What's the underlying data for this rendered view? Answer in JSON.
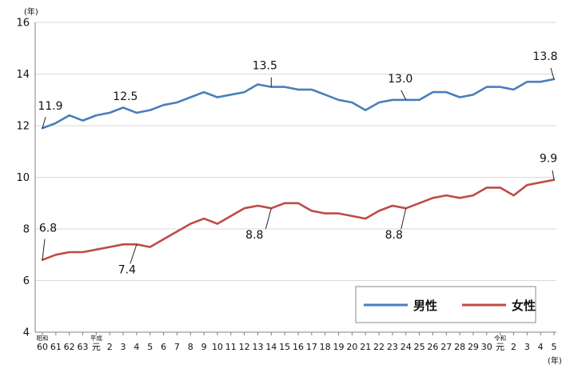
{
  "chart_data": {
    "type": "line",
    "y_unit_label": "(年)",
    "x_unit_label": "(年)",
    "ylim": [
      4,
      16
    ],
    "y_ticks": [
      "4",
      "6",
      "8",
      "10",
      "12",
      "14",
      "16"
    ],
    "x": [
      "60",
      "61",
      "62",
      "63",
      "元",
      "2",
      "3",
      "4",
      "5",
      "6",
      "7",
      "8",
      "9",
      "10",
      "11",
      "12",
      "13",
      "14",
      "15",
      "16",
      "17",
      "18",
      "19",
      "20",
      "21",
      "22",
      "23",
      "24",
      "25",
      "26",
      "27",
      "28",
      "29",
      "30",
      "元",
      "2",
      "3",
      "4",
      "5"
    ],
    "era_labels": [
      {
        "text": "昭和",
        "index": 0
      },
      {
        "text": "平成",
        "index": 4
      },
      {
        "text": "令和",
        "index": 34
      }
    ],
    "grid": "horizontal",
    "legend_position": "bottom-right",
    "series": [
      {
        "name": "男性",
        "color": "#4a7ebb",
        "values": [
          11.9,
          12.1,
          12.4,
          12.2,
          12.4,
          12.5,
          12.7,
          12.5,
          12.6,
          12.8,
          12.9,
          13.1,
          13.3,
          13.1,
          13.2,
          13.3,
          13.6,
          13.5,
          13.5,
          13.4,
          13.4,
          13.2,
          13.0,
          12.9,
          12.6,
          12.9,
          13.0,
          13.0,
          13.0,
          13.3,
          13.3,
          13.1,
          13.2,
          13.5,
          13.5,
          13.4,
          13.7,
          13.7,
          13.8
        ]
      },
      {
        "name": "女性",
        "color": "#be4b48",
        "values": [
          6.8,
          7.0,
          7.1,
          7.1,
          7.2,
          7.3,
          7.4,
          7.4,
          7.3,
          7.6,
          7.9,
          8.2,
          8.4,
          8.2,
          8.5,
          8.8,
          8.9,
          8.8,
          9.0,
          9.0,
          8.7,
          8.6,
          8.6,
          8.5,
          8.4,
          8.7,
          8.9,
          8.8,
          9.0,
          9.2,
          9.3,
          9.2,
          9.3,
          9.6,
          9.6,
          9.3,
          9.7,
          9.8,
          9.9
        ]
      }
    ],
    "annotations": [
      {
        "series": 0,
        "index": 0,
        "text": "11.9"
      },
      {
        "series": 0,
        "index": 7,
        "text": "12.5"
      },
      {
        "series": 0,
        "index": 17,
        "text": "13.5"
      },
      {
        "series": 0,
        "index": 27,
        "text": "13.0"
      },
      {
        "series": 0,
        "index": 38,
        "text": "13.8"
      },
      {
        "series": 1,
        "index": 0,
        "text": "6.8"
      },
      {
        "series": 1,
        "index": 7,
        "text": "7.4"
      },
      {
        "series": 1,
        "index": 17,
        "text": "8.8"
      },
      {
        "series": 1,
        "index": 27,
        "text": "8.8"
      },
      {
        "series": 1,
        "index": 38,
        "text": "9.9"
      }
    ]
  }
}
